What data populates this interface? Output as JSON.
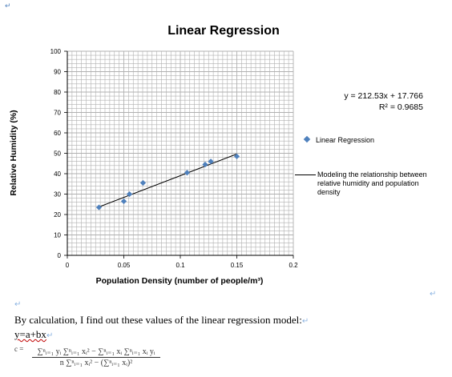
{
  "marks": {
    "top_left": "↵",
    "para": "↵",
    "right_margin": "↵"
  },
  "chart_data": {
    "type": "scatter",
    "title": "Linear Regression",
    "xlabel": "Population Density (number of people/m³)",
    "ylabel": "Relative Humidity (%)",
    "xlim": [
      0,
      0.2
    ],
    "ylim": [
      0,
      100
    ],
    "x_ticks": [
      "0",
      "0.05",
      "0.1",
      "0.15",
      "0.2"
    ],
    "y_ticks": [
      "0",
      "10",
      "20",
      "30",
      "40",
      "50",
      "60",
      "70",
      "80",
      "90",
      "100"
    ],
    "x_tick_values": [
      0,
      0.05,
      0.1,
      0.15,
      0.2
    ],
    "y_tick_values": [
      0,
      10,
      20,
      30,
      40,
      50,
      60,
      70,
      80,
      90,
      100
    ],
    "grid": true,
    "series": [
      {
        "name": "Linear Regression",
        "x": [
          0.028,
          0.05,
          0.055,
          0.067,
          0.106,
          0.122,
          0.127,
          0.15
        ],
        "y": [
          23.5,
          26.5,
          30,
          35.5,
          40.5,
          44.5,
          46,
          48.5
        ]
      }
    ],
    "trendline": {
      "name": "Modeling the relationship between relative humidity and population density",
      "x_range": [
        0.028,
        0.15
      ],
      "slope": 212.53,
      "intercept": 17.766,
      "equation": "y = 212.53x + 17.766",
      "r2": "R² = 0.9685"
    },
    "legend_position": "right",
    "colors": {
      "marker": "#4f81bd",
      "trendline": "#000000",
      "grid": "#b0b0b0"
    }
  },
  "text": {
    "calc_line": "By calculation, I find out these values of the linear regression model:",
    "model": "y=a+bx",
    "c_label": "c =",
    "numerator": "∑ⁿᵢ₌₁ yᵢ ∑ⁿᵢ₌₁ xᵢ² − ∑ⁿᵢ₌₁ xᵢ ∑ⁿᵢ₌₁ xᵢ yᵢ",
    "denominator": "n ∑ⁿᵢ₌₁ xᵢ² − (∑ⁿᵢ₌₁ xᵢ)²"
  }
}
